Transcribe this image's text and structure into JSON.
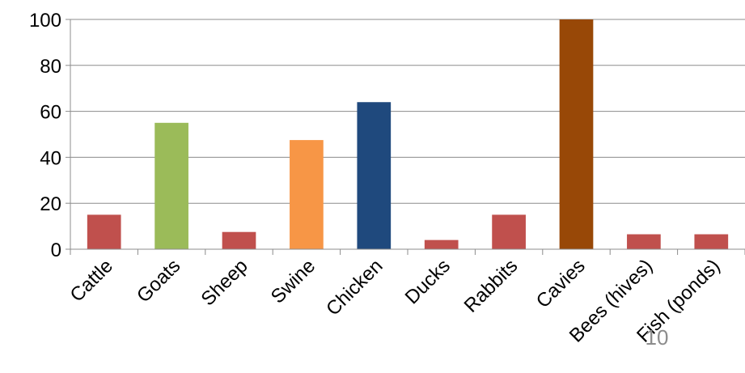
{
  "chart_data": {
    "type": "bar",
    "title": "",
    "xlabel": "",
    "ylabel": "",
    "ylim": [
      0,
      100
    ],
    "yticks": [
      0,
      20,
      40,
      60,
      80,
      100
    ],
    "grid": true,
    "legend": "none",
    "categories": [
      "Cattle",
      "Goats",
      "Sheep",
      "Swine",
      "Chicken",
      "Ducks",
      "Rabbits",
      "Cavies",
      "Bees (hives)",
      "Fish (ponds)"
    ],
    "values": [
      15,
      55,
      7.5,
      47.5,
      64,
      4,
      15,
      100,
      6.5,
      6.5
    ],
    "colors": [
      "#c0504d",
      "#9bbb59",
      "#c0504d",
      "#f79646",
      "#1f497d",
      "#c0504d",
      "#c0504d",
      "#984807",
      "#c0504d",
      "#c0504d"
    ]
  },
  "page_number": "10"
}
